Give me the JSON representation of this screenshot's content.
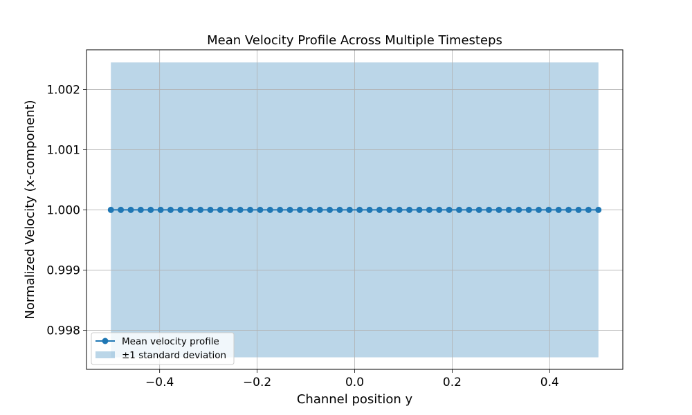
{
  "chart_data": {
    "type": "line",
    "title": "Mean Velocity Profile Across Multiple Timesteps",
    "xlabel": "Channel position y",
    "ylabel": "Normalized Velocity (x-component)",
    "xlim": [
      -0.55,
      0.55
    ],
    "ylim": [
      0.99735,
      1.00266
    ],
    "xticks": [
      -0.4,
      -0.2,
      0.0,
      0.2,
      0.4
    ],
    "xtick_labels": [
      "−0.4",
      "−0.2",
      "0.0",
      "0.2",
      "0.4"
    ],
    "yticks": [
      0.998,
      0.999,
      1.0,
      1.001,
      1.002
    ],
    "ytick_labels": [
      "0.998",
      "0.999",
      "1.000",
      "1.001",
      "1.002"
    ],
    "grid": true,
    "legend_position": "lower-left",
    "series": [
      {
        "name": "Mean velocity profile",
        "color": "#1f77b4",
        "marker": "circle",
        "x_start": -0.5,
        "x_end": 0.5,
        "num_points": 50,
        "y_constant": 1.0
      }
    ],
    "band": {
      "name": "±1 standard deviation",
      "color": "#1f77b4",
      "opacity": 0.3,
      "x_start": -0.5,
      "x_end": 0.5,
      "y_lower": 0.99755,
      "y_upper": 1.00245
    }
  }
}
